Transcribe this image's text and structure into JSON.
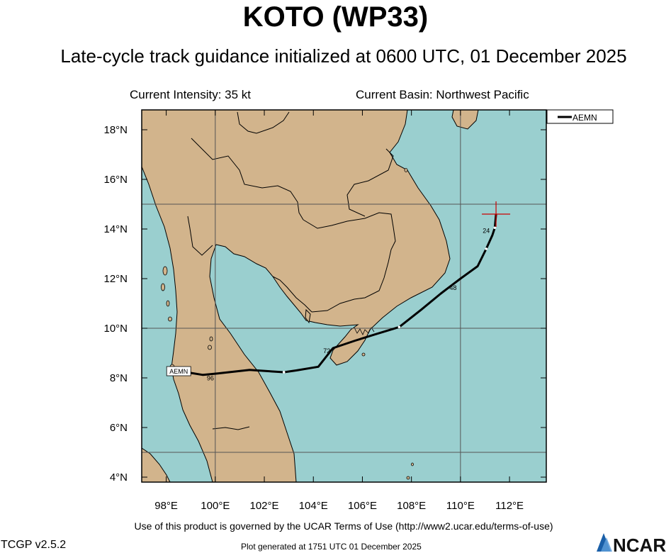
{
  "title": "KOTO (WP33)",
  "subtitle": "Late-cycle track guidance initialized at 0600 UTC, 01 December 2025",
  "current_intensity": "Current Intensity: 35 kt",
  "current_basin": "Current Basin: Northwest Pacific",
  "terms": "Use of this product is governed by the UCAR Terms of Use (http://www2.ucar.edu/terms-of-use)",
  "version": "TCGP v2.5.2",
  "generated": "Plot generated at 1751 UTC   01 December 2025",
  "logo_text": "NCAR",
  "colors": {
    "ocean": "#9acfcf",
    "land": "#d2b48c",
    "track": "#000000",
    "current_position": "#cc0000",
    "grid": "#555555"
  },
  "map": {
    "lon_range": [
      97,
      113.5
    ],
    "lat_range": [
      3.8,
      18.8
    ],
    "lon_ticks": [
      98,
      100,
      102,
      104,
      106,
      108,
      110,
      112
    ],
    "lon_tick_labels": [
      "98°E",
      "100°E",
      "102°E",
      "104°E",
      "106°E",
      "108°E",
      "110°E",
      "112°E"
    ],
    "lat_ticks": [
      4,
      6,
      8,
      10,
      12,
      14,
      16,
      18
    ],
    "lat_tick_labels": [
      "4°N",
      "6°N",
      "8°N",
      "10°N",
      "12°N",
      "14°N",
      "16°N",
      "18°N"
    ],
    "grid_lons": [
      100,
      110
    ],
    "grid_lats": [
      5,
      10,
      15
    ]
  },
  "current_position": {
    "lon": 111.45,
    "lat": 14.6
  },
  "legend": {
    "entries": [
      "AEMN"
    ],
    "placement": "top-right outside"
  },
  "tracks": [
    {
      "name": "AEMN",
      "end_label": "AEMN",
      "points": [
        {
          "lon": 111.45,
          "lat": 14.6
        },
        {
          "lon": 111.4,
          "lat": 14.05
        },
        {
          "lon": 111.3,
          "lat": 13.75
        },
        {
          "lon": 111.05,
          "lat": 13.2
        },
        {
          "lon": 110.7,
          "lat": 12.5
        },
        {
          "lon": 110.0,
          "lat": 12.0
        },
        {
          "lon": 109.2,
          "lat": 11.4
        },
        {
          "lon": 108.4,
          "lat": 10.75
        },
        {
          "lon": 107.5,
          "lat": 10.05
        },
        {
          "lon": 106.5,
          "lat": 9.75
        },
        {
          "lon": 105.7,
          "lat": 9.5
        },
        {
          "lon": 104.8,
          "lat": 9.2
        },
        {
          "lon": 104.2,
          "lat": 8.45
        },
        {
          "lon": 103.3,
          "lat": 8.3
        },
        {
          "lon": 102.8,
          "lat": 8.23
        },
        {
          "lon": 101.4,
          "lat": 8.32
        },
        {
          "lon": 100.1,
          "lat": 8.18
        },
        {
          "lon": 99.5,
          "lat": 8.12
        },
        {
          "lon": 99.0,
          "lat": 8.2
        }
      ],
      "markers": [
        {
          "lon": 111.4,
          "lat": 14.05
        },
        {
          "lon": 111.05,
          "lat": 13.2
        },
        {
          "lon": 107.5,
          "lat": 10.05
        },
        {
          "lon": 102.8,
          "lat": 8.23
        }
      ],
      "forecast_hour_labels": [
        {
          "label": "24",
          "lon": 111.05,
          "lat": 13.85
        },
        {
          "label": "48",
          "lon": 109.7,
          "lat": 11.55
        },
        {
          "label": "72",
          "lon": 104.55,
          "lat": 9.0
        },
        {
          "label": "96",
          "lon": 99.8,
          "lat": 7.9
        }
      ]
    }
  ]
}
